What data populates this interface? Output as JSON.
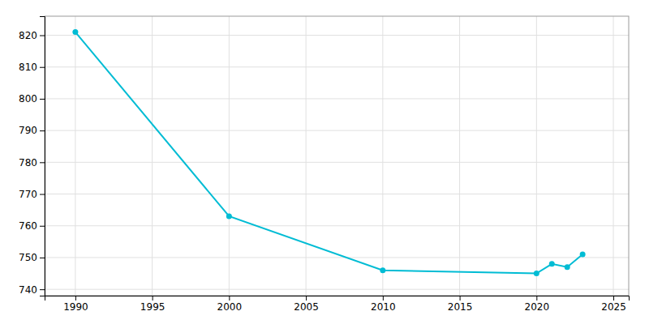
{
  "chart_data": {
    "type": "line",
    "x": [
      1990,
      2000,
      2010,
      2020,
      2021,
      2022,
      2023
    ],
    "values": [
      821,
      763,
      746,
      745,
      748,
      747,
      751
    ],
    "color": "#00BCD4",
    "marker": "circle",
    "xlim": [
      1988,
      2026
    ],
    "ylim": [
      738,
      826
    ],
    "xticks": [
      1990,
      1995,
      2000,
      2005,
      2010,
      2015,
      2020,
      2025
    ],
    "yticks": [
      740,
      750,
      760,
      770,
      780,
      790,
      800,
      810,
      820
    ],
    "grid": true
  }
}
